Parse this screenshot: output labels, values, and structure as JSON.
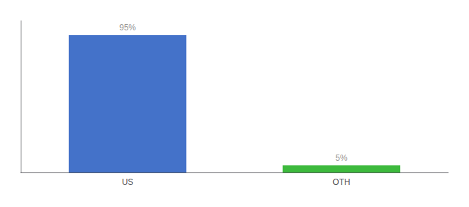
{
  "chart_data": {
    "type": "bar",
    "categories": [
      "US",
      "OTH"
    ],
    "values": [
      95,
      5
    ],
    "value_labels": [
      "95%",
      "5%"
    ],
    "colors": [
      "#4472c9",
      "#3dba3d"
    ],
    "ylim": [
      0,
      105
    ],
    "tick_labels": "x",
    "grid": false,
    "data_labels": true
  }
}
